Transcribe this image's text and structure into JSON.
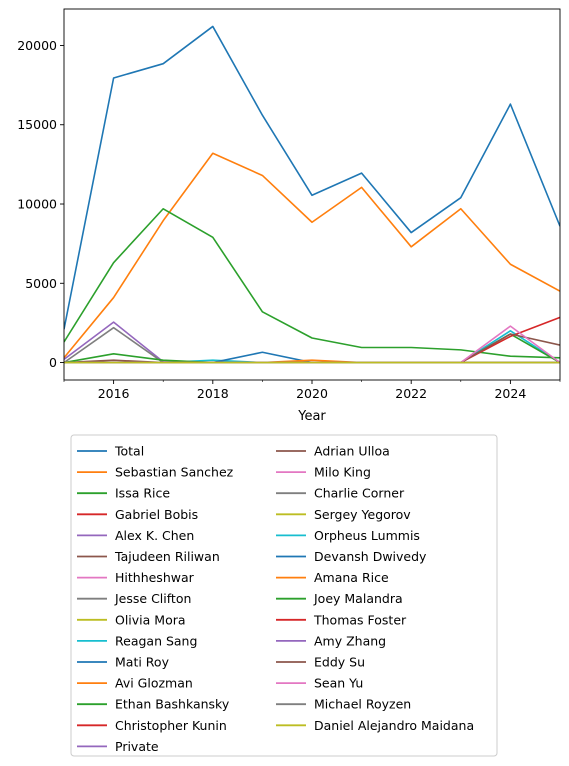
{
  "chart_data": {
    "type": "line",
    "title": "",
    "xlabel": "Year",
    "ylabel": "",
    "xlim": [
      2015,
      2025
    ],
    "ylim": [
      -1100,
      22300
    ],
    "x_ticks": [
      {
        "value": 2016,
        "label": "2016"
      },
      {
        "value": 2018,
        "label": "2018"
      },
      {
        "value": 2020,
        "label": "2020"
      },
      {
        "value": 2022,
        "label": "2022"
      },
      {
        "value": 2024,
        "label": "2024"
      }
    ],
    "y_ticks": [
      {
        "value": 0,
        "label": "0"
      },
      {
        "value": 5000,
        "label": "5000"
      },
      {
        "value": 10000,
        "label": "10000"
      },
      {
        "value": 15000,
        "label": "15000"
      },
      {
        "value": 20000,
        "label": "20000"
      }
    ],
    "grid": false,
    "legend_placement": "below",
    "legend_columns": 2,
    "x": [
      2015,
      2016,
      2017,
      2018,
      2019,
      2020,
      2021,
      2022,
      2023,
      2024,
      2025
    ],
    "series": [
      {
        "name": "Total",
        "color": "#1f77b4",
        "values": [
          2100,
          17950,
          18850,
          21200,
          15600,
          10550,
          11950,
          8200,
          10400,
          16300,
          8600
        ]
      },
      {
        "name": "Sebastian Sanchez",
        "color": "#ff7f0e",
        "values": [
          300,
          4100,
          8950,
          13200,
          11800,
          8850,
          11050,
          7300,
          9700,
          6200,
          4500
        ]
      },
      {
        "name": "Issa Rice",
        "color": "#2ca02c",
        "values": [
          1300,
          6300,
          9700,
          7900,
          3200,
          1550,
          950,
          950,
          800,
          400,
          300
        ]
      },
      {
        "name": "Gabriel Bobis",
        "color": "#d62728",
        "values": [
          0,
          0,
          0,
          0,
          0,
          0,
          0,
          0,
          0,
          0,
          0
        ]
      },
      {
        "name": "Alex K. Chen",
        "color": "#9467bd",
        "values": [
          200,
          2550,
          50,
          0,
          0,
          0,
          0,
          0,
          0,
          0,
          0
        ]
      },
      {
        "name": "Tajudeen Riliwan",
        "color": "#8c564b",
        "values": [
          0,
          150,
          0,
          0,
          0,
          0,
          0,
          0,
          0,
          0,
          0
        ]
      },
      {
        "name": "Hithheshwar",
        "color": "#e377c2",
        "values": [
          0,
          0,
          0,
          0,
          0,
          0,
          0,
          0,
          0,
          0,
          0
        ]
      },
      {
        "name": "Jesse Clifton",
        "color": "#7f7f7f",
        "values": [
          0,
          2200,
          0,
          0,
          0,
          0,
          0,
          0,
          0,
          0,
          0
        ]
      },
      {
        "name": "Olivia Mora",
        "color": "#bcbd22",
        "values": [
          0,
          0,
          0,
          0,
          0,
          0,
          0,
          0,
          0,
          0,
          0
        ]
      },
      {
        "name": "Reagan Sang",
        "color": "#17becf",
        "values": [
          0,
          0,
          0,
          150,
          0,
          0,
          0,
          0,
          0,
          0,
          0
        ]
      },
      {
        "name": "Mati Roy",
        "color": "#1f77b4",
        "values": [
          0,
          0,
          0,
          0,
          650,
          0,
          0,
          0,
          0,
          0,
          0
        ]
      },
      {
        "name": "Avi Glozman",
        "color": "#ff7f0e",
        "values": [
          0,
          0,
          0,
          0,
          0,
          150,
          0,
          0,
          0,
          0,
          0
        ]
      },
      {
        "name": "Ethan Bashkansky",
        "color": "#2ca02c",
        "values": [
          0,
          550,
          150,
          0,
          0,
          0,
          0,
          0,
          0,
          0,
          0
        ]
      },
      {
        "name": "Christopher Kunin",
        "color": "#d62728",
        "values": [
          0,
          0,
          0,
          0,
          0,
          0,
          0,
          0,
          0,
          0,
          0
        ]
      },
      {
        "name": "Private",
        "color": "#9467bd",
        "values": [
          0,
          0,
          0,
          0,
          0,
          0,
          0,
          0,
          0,
          0,
          0
        ]
      },
      {
        "name": "Adrian Ulloa",
        "color": "#8c564b",
        "values": [
          0,
          0,
          0,
          0,
          0,
          0,
          0,
          0,
          0,
          0,
          0
        ]
      },
      {
        "name": "Milo King",
        "color": "#e377c2",
        "values": [
          0,
          0,
          0,
          0,
          0,
          0,
          0,
          0,
          0,
          0,
          0
        ]
      },
      {
        "name": "Charlie Corner",
        "color": "#7f7f7f",
        "values": [
          0,
          0,
          0,
          0,
          0,
          0,
          0,
          0,
          0,
          0,
          0
        ]
      },
      {
        "name": "Sergey Yegorov",
        "color": "#bcbd22",
        "values": [
          0,
          0,
          0,
          0,
          0,
          0,
          0,
          0,
          0,
          0,
          0
        ]
      },
      {
        "name": "Orpheus Lummis",
        "color": "#17becf",
        "values": [
          0,
          0,
          0,
          0,
          0,
          0,
          0,
          0,
          0,
          2000,
          0
        ]
      },
      {
        "name": "Devansh Dwivedy",
        "color": "#1f77b4",
        "values": [
          0,
          0,
          0,
          0,
          0,
          0,
          0,
          0,
          0,
          0,
          0
        ]
      },
      {
        "name": "Amana Rice",
        "color": "#ff7f0e",
        "values": [
          0,
          0,
          0,
          0,
          0,
          0,
          0,
          0,
          0,
          0,
          0
        ]
      },
      {
        "name": "Joey Malandra",
        "color": "#2ca02c",
        "values": [
          0,
          0,
          0,
          0,
          0,
          0,
          0,
          0,
          0,
          1800,
          0
        ]
      },
      {
        "name": "Thomas Foster",
        "color": "#d62728",
        "values": [
          0,
          0,
          0,
          0,
          0,
          0,
          0,
          0,
          0,
          1650,
          2850
        ]
      },
      {
        "name": "Amy Zhang",
        "color": "#9467bd",
        "values": [
          0,
          0,
          0,
          0,
          0,
          0,
          0,
          0,
          0,
          0,
          0
        ]
      },
      {
        "name": "Eddy Su",
        "color": "#8c564b",
        "values": [
          0,
          0,
          0,
          0,
          0,
          0,
          0,
          0,
          0,
          1800,
          1100
        ]
      },
      {
        "name": "Sean Yu",
        "color": "#e377c2",
        "values": [
          0,
          0,
          0,
          0,
          0,
          0,
          0,
          0,
          0,
          2300,
          0
        ]
      },
      {
        "name": "Michael Royzen",
        "color": "#7f7f7f",
        "values": [
          0,
          0,
          0,
          0,
          0,
          0,
          0,
          0,
          0,
          0,
          0
        ]
      },
      {
        "name": "Daniel Alejandro Maidana",
        "color": "#bcbd22",
        "values": [
          0,
          0,
          0,
          0,
          0,
          0,
          0,
          0,
          0,
          0,
          0
        ]
      }
    ]
  }
}
